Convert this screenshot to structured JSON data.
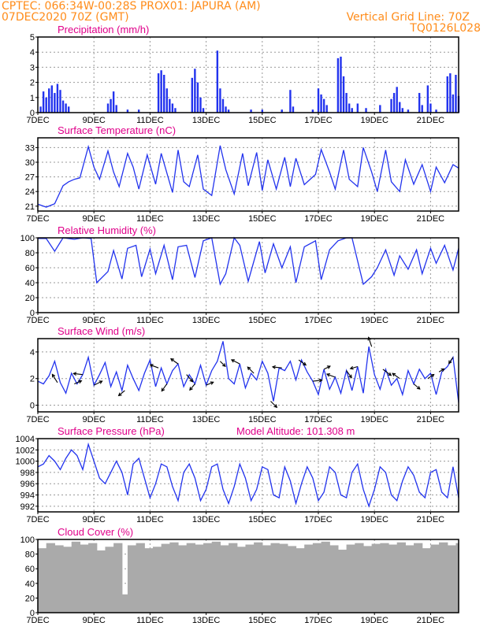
{
  "header": {
    "line1_left": "CPTEC:   066:34W-00:28S   PROX01: JAPURA (AM)",
    "line2_left": "07DEC2020 70Z (GMT)",
    "line2_right": "Vertical Grid Line: 70Z",
    "line3_right": "TQ0126L028"
  },
  "colors": {
    "header_text": "#ff8c1a",
    "panel_title": "#e0008a",
    "series": "#2233ee",
    "cloud": "#aaaaaa",
    "wind_arrow": "#000000"
  },
  "x_axis": {
    "labels": [
      "7DEC",
      "9DEC",
      "11DEC",
      "13DEC",
      "15DEC",
      "17DEC",
      "19DEC",
      "21DEC"
    ],
    "start_day": 7,
    "end_day": 22
  },
  "chart_data": [
    {
      "id": "precipitation",
      "type": "bar",
      "title": "Precipitation (mm/h)",
      "ylim": [
        0,
        5
      ],
      "yticks": [
        0,
        1,
        2,
        3,
        4,
        5
      ],
      "grid": true,
      "x": [
        7.1,
        7.2,
        7.3,
        7.4,
        7.5,
        7.6,
        7.7,
        7.8,
        7.9,
        8.0,
        8.1,
        9.5,
        9.6,
        9.7,
        9.8,
        10.2,
        10.6,
        11.3,
        11.4,
        11.5,
        11.6,
        11.7,
        11.8,
        11.9,
        12.5,
        12.6,
        12.7,
        12.8,
        12.9,
        13.4,
        13.5,
        13.6,
        13.7,
        13.8,
        14.6,
        15.0,
        15.7,
        16.0,
        16.1,
        16.8,
        17.0,
        17.1,
        17.2,
        17.3,
        17.7,
        17.8,
        17.9,
        18.0,
        18.1,
        18.2,
        18.4,
        18.7,
        19.2,
        19.6,
        19.7,
        19.8,
        19.9,
        20.0,
        20.2,
        20.6,
        20.7,
        20.9,
        21.0,
        21.2,
        21.6,
        21.7,
        21.8,
        21.9,
        22.0
      ],
      "values": [
        0.4,
        1.4,
        1.0,
        1.6,
        1.8,
        1.3,
        1.9,
        1.5,
        0.8,
        0.6,
        0.4,
        0.6,
        0.9,
        1.4,
        0.5,
        0.2,
        0.2,
        2.6,
        2.8,
        2.5,
        1.6,
        0.9,
        0.6,
        0.3,
        2.3,
        2.9,
        2.0,
        1.0,
        0.3,
        4.1,
        1.6,
        0.9,
        0.4,
        0.2,
        0.2,
        0.2,
        0.2,
        1.5,
        0.4,
        0.2,
        1.6,
        1.2,
        0.9,
        0.5,
        3.6,
        3.7,
        2.4,
        1.3,
        0.6,
        0.3,
        0.6,
        0.3,
        0.5,
        0.9,
        1.3,
        1.7,
        0.7,
        0.3,
        0.2,
        1.3,
        0.5,
        1.8,
        0.6,
        0.2,
        2.4,
        2.6,
        1.2,
        2.5,
        1.1
      ]
    },
    {
      "id": "temperature",
      "type": "line",
      "title": "Surface Temperature (nC)",
      "ylim": [
        20,
        35
      ],
      "yticks": [
        21,
        24,
        27,
        30,
        33
      ],
      "grid": true,
      "x": [
        7.0,
        7.3,
        7.6,
        7.9,
        8.1,
        8.3,
        8.5,
        8.8,
        9.0,
        9.2,
        9.5,
        9.7,
        9.9,
        10.2,
        10.4,
        10.6,
        10.9,
        11.2,
        11.4,
        11.8,
        12.0,
        12.2,
        12.4,
        12.7,
        12.9,
        13.2,
        13.5,
        13.7,
        14.0,
        14.3,
        14.5,
        14.8,
        15.0,
        15.2,
        15.5,
        15.8,
        16.0,
        16.2,
        16.5,
        16.9,
        17.1,
        17.4,
        17.6,
        17.9,
        18.1,
        18.4,
        18.6,
        18.9,
        19.1,
        19.4,
        19.6,
        19.9,
        20.1,
        20.4,
        20.7,
        21.0,
        21.2,
        21.5,
        21.8,
        22.0
      ],
      "values": [
        21.4,
        20.8,
        21.5,
        25.2,
        26.0,
        26.5,
        26.8,
        33.2,
        29.0,
        26.5,
        32.3,
        28.0,
        25.0,
        31.8,
        29.0,
        24.5,
        31.5,
        25.5,
        31.8,
        23.8,
        32.5,
        26.0,
        25.0,
        31.5,
        24.5,
        23.2,
        33.4,
        28.5,
        23.5,
        31.8,
        25.2,
        32.0,
        24.2,
        30.5,
        24.5,
        31.0,
        25.0,
        30.8,
        25.4,
        27.5,
        32.6,
        28.0,
        24.5,
        32.5,
        26.5,
        25.0,
        33.0,
        28.0,
        24.0,
        32.5,
        26.0,
        24.0,
        30.5,
        25.5,
        29.5,
        24.0,
        29.0,
        25.8,
        29.5,
        28.8
      ]
    },
    {
      "id": "humidity",
      "type": "line",
      "title": "Relative Humidity (%)",
      "ylim": [
        0,
        100
      ],
      "yticks": [
        0,
        20,
        40,
        60,
        80,
        100
      ],
      "grid": true,
      "x": [
        7.0,
        7.3,
        7.6,
        7.9,
        8.3,
        8.6,
        8.9,
        9.1,
        9.5,
        9.7,
        10.0,
        10.2,
        10.5,
        10.7,
        11.0,
        11.2,
        11.5,
        11.8,
        12.0,
        12.3,
        12.6,
        12.9,
        13.2,
        13.5,
        13.7,
        14.0,
        14.2,
        14.5,
        14.9,
        15.1,
        15.4,
        15.7,
        16.0,
        16.2,
        16.5,
        16.9,
        17.1,
        17.4,
        17.7,
        18.0,
        18.2,
        18.6,
        18.9,
        19.1,
        19.4,
        19.7,
        19.9,
        20.2,
        20.5,
        20.7,
        21.0,
        21.2,
        21.5,
        21.8,
        22.0
      ],
      "values": [
        99,
        99,
        82,
        100,
        98,
        100,
        99,
        40,
        55,
        83,
        45,
        86,
        90,
        48,
        85,
        52,
        90,
        44,
        88,
        90,
        47,
        96,
        100,
        38,
        52,
        100,
        90,
        42,
        95,
        53,
        92,
        60,
        88,
        40,
        88,
        96,
        44,
        84,
        96,
        100,
        100,
        38,
        48,
        60,
        84,
        50,
        76,
        58,
        84,
        52,
        86,
        66,
        90,
        57,
        86
      ]
    },
    {
      "id": "wind",
      "type": "line",
      "title": "Surface Wind (m/s)",
      "ylim": [
        -0.5,
        5
      ],
      "yticks": [
        0,
        2,
        4
      ],
      "grid": true,
      "x": [
        7.0,
        7.2,
        7.4,
        7.6,
        7.8,
        8.0,
        8.2,
        8.4,
        8.6,
        8.8,
        9.0,
        9.2,
        9.4,
        9.6,
        9.8,
        10.0,
        10.2,
        10.4,
        10.6,
        10.8,
        11.0,
        11.2,
        11.4,
        11.6,
        11.8,
        12.0,
        12.2,
        12.4,
        12.6,
        12.8,
        13.0,
        13.2,
        13.4,
        13.6,
        13.8,
        14.0,
        14.2,
        14.4,
        14.6,
        14.8,
        15.0,
        15.2,
        15.4,
        15.6,
        15.8,
        16.0,
        16.2,
        16.4,
        16.6,
        16.8,
        17.0,
        17.2,
        17.4,
        17.6,
        17.8,
        18.0,
        18.2,
        18.4,
        18.6,
        18.8,
        19.0,
        19.2,
        19.4,
        19.6,
        19.8,
        20.0,
        20.2,
        20.4,
        20.6,
        20.8,
        21.0,
        21.2,
        21.4,
        21.6,
        21.8,
        22.0
      ],
      "values": [
        1.8,
        1.6,
        2.2,
        3.3,
        1.7,
        0.9,
        2.4,
        1.6,
        2.3,
        3.6,
        1.5,
        2.3,
        3.2,
        1.4,
        2.5,
        1.1,
        3.0,
        2.0,
        1.1,
        2.4,
        3.4,
        1.4,
        2.8,
        1.6,
        2.6,
        3.1,
        1.4,
        2.3,
        1.6,
        3.0,
        1.5,
        2.6,
        3.3,
        4.8,
        2.0,
        1.6,
        3.1,
        1.3,
        2.4,
        1.9,
        3.3,
        2.4,
        0.3,
        2.8,
        2.6,
        3.3,
        1.9,
        3.4,
        2.5,
        1.8,
        0.8,
        2.7,
        1.2,
        2.1,
        0.9,
        2.6,
        1.1,
        2.9,
        0.9,
        4.4,
        2.3,
        1.2,
        2.7,
        1.5,
        2.0,
        0.8,
        2.6,
        1.6,
        2.7,
        2.0,
        2.4,
        0.8,
        2.5,
        2.9,
        3.6,
        0.2
      ]
    },
    {
      "id": "pressure",
      "type": "line",
      "title": "Surface Pressure (hPa)",
      "annotation": "Model Altitude: 101.308 m",
      "ylim": [
        991,
        1004
      ],
      "yticks": [
        992,
        994,
        996,
        998,
        1000,
        1002,
        1004
      ],
      "grid": true,
      "x": [
        7.0,
        7.2,
        7.4,
        7.6,
        7.8,
        8.0,
        8.2,
        8.4,
        8.6,
        8.8,
        9.0,
        9.2,
        9.4,
        9.6,
        9.8,
        10.0,
        10.2,
        10.4,
        10.6,
        10.8,
        11.0,
        11.2,
        11.4,
        11.6,
        11.8,
        12.0,
        12.2,
        12.4,
        12.6,
        12.8,
        13.0,
        13.2,
        13.4,
        13.6,
        13.8,
        14.0,
        14.2,
        14.4,
        14.6,
        14.8,
        15.0,
        15.2,
        15.4,
        15.6,
        15.8,
        16.0,
        16.2,
        16.4,
        16.6,
        16.8,
        17.0,
        17.2,
        17.4,
        17.6,
        17.8,
        18.0,
        18.2,
        18.4,
        18.6,
        18.8,
        19.0,
        19.2,
        19.4,
        19.6,
        19.8,
        20.0,
        20.2,
        20.4,
        20.6,
        20.8,
        21.0,
        21.2,
        21.4,
        21.6,
        21.8,
        22.0
      ],
      "values": [
        999,
        999.5,
        1001,
        1000,
        998.5,
        1000.5,
        1002,
        1001,
        998.5,
        1003,
        1000,
        997,
        996,
        998,
        1000,
        998,
        994,
        999.5,
        1000.5,
        997,
        993.5,
        996,
        999.5,
        999,
        995.5,
        993,
        998,
        999.5,
        997,
        993,
        995,
        999,
        999.5,
        995,
        992.5,
        995.5,
        999.5,
        997,
        993,
        995,
        999,
        998.5,
        994,
        993.5,
        999,
        996.5,
        992.5,
        996,
        999,
        997,
        993,
        994.5,
        999,
        998,
        994,
        993.5,
        998,
        999.5,
        995,
        992,
        995,
        999,
        998,
        994,
        993,
        996.5,
        999,
        997.5,
        994.5,
        993.5,
        998,
        998.5,
        994.5,
        993.5,
        999,
        993.5
      ]
    },
    {
      "id": "cloud",
      "type": "area",
      "title": "Cloud Cover (%)",
      "ylim": [
        0,
        100
      ],
      "yticks": [
        0,
        20,
        40,
        60,
        80,
        100
      ],
      "grid": true,
      "x": [
        7.0,
        7.3,
        7.6,
        7.9,
        8.2,
        8.5,
        8.8,
        9.1,
        9.4,
        9.7,
        10.0,
        10.2,
        10.5,
        10.8,
        11.1,
        11.4,
        11.7,
        12.0,
        12.3,
        12.6,
        12.9,
        13.2,
        13.5,
        13.8,
        14.1,
        14.4,
        14.7,
        15.0,
        15.3,
        15.6,
        15.9,
        16.2,
        16.5,
        16.8,
        17.1,
        17.4,
        17.7,
        18.0,
        18.3,
        18.6,
        18.9,
        19.2,
        19.5,
        19.8,
        20.1,
        20.4,
        20.7,
        21.0,
        21.3,
        21.6,
        21.9,
        22.0
      ],
      "values": [
        88,
        95,
        92,
        90,
        97,
        93,
        95,
        85,
        90,
        95,
        25,
        92,
        95,
        88,
        90,
        94,
        96,
        92,
        95,
        93,
        95,
        97,
        92,
        95,
        90,
        93,
        96,
        92,
        95,
        94,
        91,
        88,
        93,
        95,
        97,
        92,
        86,
        93,
        95,
        91,
        94,
        95,
        93,
        96,
        92,
        95,
        88,
        93,
        96,
        92,
        95,
        94
      ]
    }
  ],
  "wind_vectors": {
    "x": [
      7.7,
      8.3,
      8.6,
      9.0,
      10.1,
      11.3,
      11.6,
      12.0,
      12.3,
      12.6,
      13.0,
      13.5,
      14.2,
      14.7,
      15.3,
      15.7,
      16.3,
      16.8,
      17.2,
      17.6,
      18.0,
      18.4,
      18.9,
      19.3,
      19.9,
      20.4,
      20.9,
      21.3,
      21.8
    ],
    "u": [
      -0.5,
      0.7,
      -0.9,
      0.8,
      -0.6,
      -0.8,
      -0.5,
      -0.7,
      0.6,
      -0.5,
      0.7,
      0.5,
      -0.8,
      -0.6,
      0.6,
      -0.9,
      0.7,
      0.9,
      0.6,
      -0.8,
      0.5,
      -0.7,
      -0.3,
      0.8,
      -0.7,
      0.6,
      0.6,
      0.5,
      -0.4
    ],
    "v": [
      0.8,
      0.3,
      0.1,
      0.4,
      -0.5,
      0.3,
      -0.7,
      0.5,
      -0.7,
      -0.6,
      0.3,
      -0.5,
      0.4,
      0.6,
      -0.6,
      0.1,
      -0.5,
      0.1,
      0.3,
      0.3,
      -0.7,
      -0.2,
      0.9,
      -0.6,
      0.5,
      -0.5,
      0.4,
      0.3,
      -0.6
    ]
  }
}
